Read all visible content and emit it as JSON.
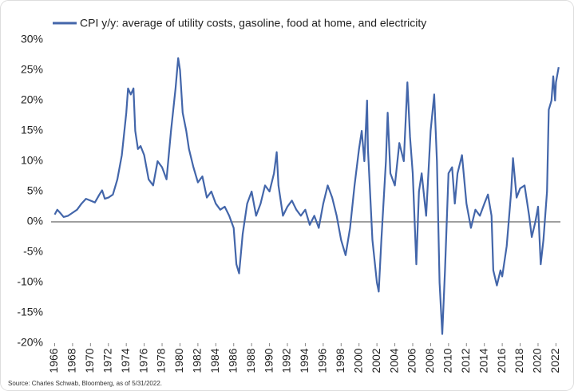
{
  "chart_data": {
    "type": "line",
    "source": "Source: Charles Schwab, Bloomberg, as of 5/31/2022.",
    "x": [
      1966,
      1966.3,
      1966.6,
      1967,
      1967.5,
      1968,
      1968.5,
      1969,
      1969.5,
      1970,
      1970.5,
      1971,
      1971.3,
      1971.6,
      1972,
      1972.5,
      1973,
      1973.5,
      1974,
      1974.2,
      1974.5,
      1974.8,
      1975,
      1975.3,
      1975.6,
      1976,
      1976.5,
      1977,
      1977.5,
      1978,
      1978.5,
      1979,
      1979.5,
      1979.8,
      1980,
      1980.3,
      1980.7,
      1981,
      1981.5,
      1982,
      1982.5,
      1983,
      1983.5,
      1984,
      1984.5,
      1985,
      1985.5,
      1986,
      1986.3,
      1986.6,
      1987,
      1987.5,
      1988,
      1988.5,
      1989,
      1989.5,
      1990,
      1990.5,
      1990.8,
      1991,
      1991.5,
      1992,
      1992.5,
      1993,
      1993.5,
      1994,
      1994.5,
      1995,
      1995.5,
      1996,
      1996.5,
      1997,
      1997.5,
      1998,
      1998.5,
      1999,
      1999.5,
      2000,
      2000.3,
      2000.6,
      2000.9,
      2001,
      2001.5,
      2002,
      2002.2,
      2002.5,
      2003,
      2003.2,
      2003.5,
      2004,
      2004.5,
      2005,
      2005.4,
      2005.7,
      2006,
      2006.4,
      2006.7,
      2007,
      2007.5,
      2008,
      2008.4,
      2008.7,
      2009,
      2009.3,
      2009.6,
      2010,
      2010.4,
      2010.7,
      2011,
      2011.5,
      2012,
      2012.5,
      2013,
      2013.5,
      2014,
      2014.4,
      2014.8,
      2015,
      2015.4,
      2015.8,
      2016,
      2016.5,
      2017,
      2017.2,
      2017.6,
      2018,
      2018.5,
      2019,
      2019.3,
      2019.7,
      2020,
      2020.3,
      2020.6,
      2021,
      2021.2,
      2021.5,
      2021.7,
      2021.9,
      2022,
      2022.3
    ],
    "series": [
      {
        "name": "CPI y/y: average of utility costs, gasoline, food at home, and electricity",
        "color": "#4366aa",
        "values": [
          1.2,
          2,
          1.5,
          0.8,
          1,
          1.5,
          2,
          3,
          3.8,
          3.5,
          3.2,
          4.5,
          5.2,
          3.8,
          4,
          4.5,
          7,
          11,
          18,
          22,
          21,
          22,
          15,
          12,
          12.5,
          11,
          7,
          6,
          10,
          9,
          7,
          15,
          22,
          27,
          25,
          18,
          15,
          12,
          9,
          6.5,
          7.5,
          4,
          5,
          3,
          2,
          2.5,
          1,
          -1,
          -7,
          -8.5,
          -2,
          3,
          5,
          1,
          3,
          6,
          5,
          8,
          11.5,
          6,
          1,
          2.5,
          3.5,
          2,
          1,
          2,
          -0.5,
          1,
          -1,
          3,
          6,
          4,
          1,
          -3,
          -5.5,
          -1,
          6,
          12,
          15,
          10,
          20,
          12,
          -3,
          -10,
          -11.5,
          -3,
          10,
          18,
          8,
          6,
          13,
          10,
          23,
          14,
          8,
          -7,
          5,
          8,
          1,
          15,
          21,
          10,
          -10,
          -18.5,
          -8,
          8,
          9,
          3,
          8,
          11,
          3,
          -1,
          2,
          1,
          3,
          4.5,
          1,
          -8,
          -10.5,
          -8,
          -9,
          -4,
          5,
          10.5,
          4,
          5.5,
          6,
          1,
          -2.5,
          0,
          2.5,
          -7,
          -3,
          5,
          18.5,
          20,
          24,
          20,
          23,
          25.5
        ]
      }
    ],
    "xlim": [
      1965.6,
      2022.5
    ],
    "xticks": [
      1966,
      1968,
      1970,
      1972,
      1974,
      1976,
      1978,
      1980,
      1982,
      1984,
      1986,
      1988,
      1990,
      1992,
      1994,
      1996,
      1998,
      2000,
      2002,
      2004,
      2006,
      2008,
      2010,
      2012,
      2014,
      2016,
      2018,
      2020,
      2022
    ],
    "ylim": [
      -20,
      30
    ],
    "yticks": [
      {
        "value": -20,
        "label": "-20%"
      },
      {
        "value": -15,
        "label": "-15%"
      },
      {
        "value": -10,
        "label": "-10%"
      },
      {
        "value": -5,
        "label": "-5%"
      },
      {
        "value": 0,
        "label": "0%"
      },
      {
        "value": 5,
        "label": "5%"
      },
      {
        "value": 10,
        "label": "10%"
      },
      {
        "value": 15,
        "label": "15%"
      },
      {
        "value": 20,
        "label": "20%"
      },
      {
        "value": 25,
        "label": "25%"
      },
      {
        "value": 30,
        "label": "30%"
      }
    ]
  }
}
